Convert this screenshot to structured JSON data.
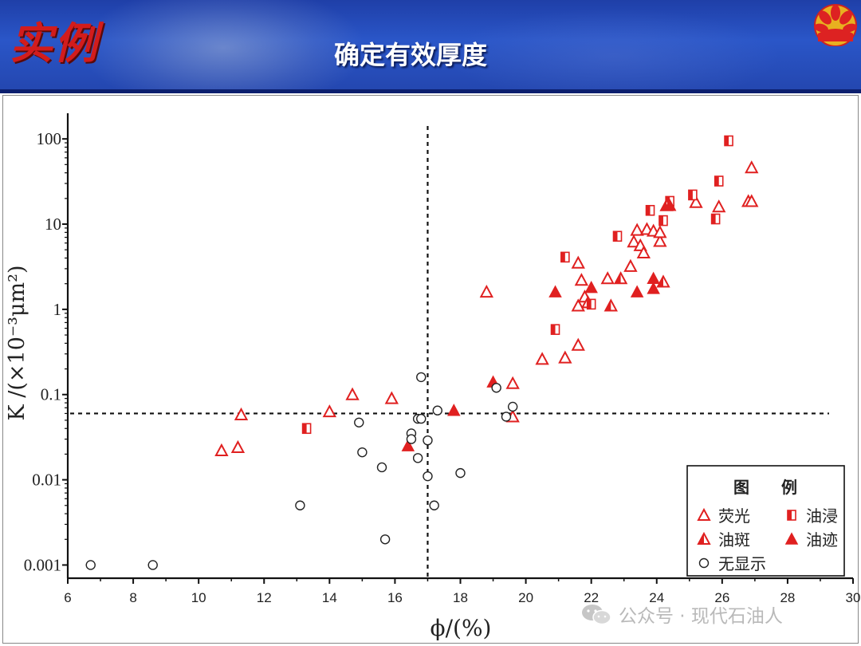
{
  "header": {
    "section_tag": "实例",
    "title": "确定有效厚度"
  },
  "watermark": {
    "text": "公众号 · 现代石油人"
  },
  "colors": {
    "header_blue": "#2a56c8",
    "series_red": "#e02020",
    "no_show": "#222222"
  },
  "chart_data": {
    "type": "scatter",
    "xlabel": "ϕ/(%)",
    "ylabel": "K /(×10⁻³μm²)",
    "x_scale": "linear",
    "y_scale": "log",
    "xlim": [
      6,
      30
    ],
    "ylim": [
      0.0007,
      200
    ],
    "x_ticks": [
      6,
      8,
      10,
      12,
      14,
      16,
      18,
      20,
      22,
      24,
      26,
      28,
      30
    ],
    "y_ticks": [
      {
        "value": 0.001,
        "label": "0.001"
      },
      {
        "value": 0.01,
        "label": "0.01"
      },
      {
        "value": 0.1,
        "label": "0.1"
      },
      {
        "value": 1,
        "label": "1"
      },
      {
        "value": 10,
        "label": "10"
      },
      {
        "value": 100,
        "label": "100"
      }
    ],
    "grid": false,
    "cutoff_lines": {
      "porosity": 17,
      "permeability": 0.06
    },
    "legend": {
      "title": "图　　例",
      "position": "bottom-right",
      "entries": [
        {
          "key": "fluorescent",
          "label": "荧光"
        },
        {
          "key": "oil_immersed",
          "label": "油浸"
        },
        {
          "key": "oil_spot",
          "label": "油斑"
        },
        {
          "key": "oil_trace",
          "label": "油迹"
        },
        {
          "key": "no_show",
          "label": "无显示"
        }
      ]
    },
    "series": [
      {
        "key": "fluorescent",
        "name": "荧光",
        "points": [
          [
            10.7,
            0.022
          ],
          [
            11.2,
            0.024
          ],
          [
            11.3,
            0.058
          ],
          [
            14.0,
            0.063
          ],
          [
            14.7,
            0.1
          ],
          [
            15.9,
            0.09
          ],
          [
            18.8,
            1.6
          ],
          [
            19.6,
            0.055
          ],
          [
            19.6,
            0.135
          ],
          [
            20.5,
            0.26
          ],
          [
            21.2,
            0.27
          ],
          [
            21.6,
            0.38
          ],
          [
            21.6,
            1.1
          ],
          [
            21.6,
            3.5
          ],
          [
            21.7,
            2.2
          ],
          [
            21.8,
            1.4
          ],
          [
            21.9,
            1.2
          ],
          [
            22.5,
            2.3
          ],
          [
            23.2,
            3.2
          ],
          [
            23.3,
            6.2
          ],
          [
            23.4,
            8.5
          ],
          [
            23.5,
            5.6
          ],
          [
            23.6,
            4.6
          ],
          [
            23.7,
            8.7
          ],
          [
            23.9,
            8.3
          ],
          [
            24.1,
            6.3
          ],
          [
            24.1,
            8.0
          ],
          [
            25.2,
            18.0
          ],
          [
            25.9,
            16.0
          ],
          [
            26.8,
            18.5
          ],
          [
            26.9,
            18.5
          ],
          [
            26.9,
            46.0
          ]
        ]
      },
      {
        "key": "oil_immersed",
        "name": "油浸",
        "points": [
          [
            13.3,
            0.04
          ],
          [
            20.9,
            0.58
          ],
          [
            21.2,
            4.1
          ],
          [
            22.0,
            1.15
          ],
          [
            22.8,
            7.2
          ],
          [
            23.8,
            14.5
          ],
          [
            24.2,
            11.0
          ],
          [
            24.4,
            18.5
          ],
          [
            25.1,
            22.0
          ],
          [
            25.8,
            11.5
          ],
          [
            25.9,
            32.0
          ],
          [
            26.2,
            95.0
          ]
        ]
      },
      {
        "key": "oil_spot",
        "name": "油斑",
        "points": [
          [
            22.6,
            1.1
          ],
          [
            22.9,
            2.3
          ],
          [
            24.2,
            2.1
          ],
          [
            24.3,
            16.5
          ]
        ]
      },
      {
        "key": "oil_trace",
        "name": "油迹",
        "points": [
          [
            16.4,
            0.025
          ],
          [
            17.8,
            0.065
          ],
          [
            19.0,
            0.14
          ],
          [
            20.9,
            1.6
          ],
          [
            22.0,
            1.8
          ],
          [
            23.4,
            1.6
          ],
          [
            23.9,
            1.75
          ],
          [
            23.9,
            2.3
          ],
          [
            24.4,
            16.5
          ]
        ]
      },
      {
        "key": "no_show",
        "name": "无显示",
        "points": [
          [
            6.7,
            0.001
          ],
          [
            8.6,
            0.001
          ],
          [
            13.1,
            0.005
          ],
          [
            14.9,
            0.047
          ],
          [
            15.0,
            0.021
          ],
          [
            15.6,
            0.014
          ],
          [
            15.7,
            0.002
          ],
          [
            16.5,
            0.035
          ],
          [
            16.5,
            0.03
          ],
          [
            16.7,
            0.018
          ],
          [
            16.7,
            0.052
          ],
          [
            16.8,
            0.16
          ],
          [
            16.8,
            0.052
          ],
          [
            17.0,
            0.029
          ],
          [
            17.0,
            0.011
          ],
          [
            17.2,
            0.005
          ],
          [
            17.3,
            0.065
          ],
          [
            18.0,
            0.012
          ],
          [
            19.1,
            0.12
          ],
          [
            19.4,
            0.055
          ],
          [
            19.6,
            0.072
          ]
        ]
      }
    ]
  }
}
